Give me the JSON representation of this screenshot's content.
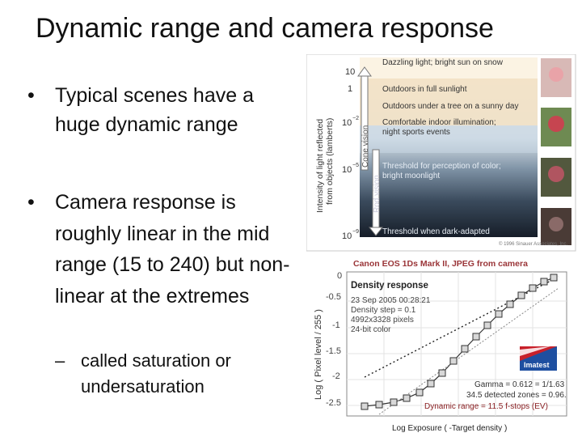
{
  "slide": {
    "title": "Dynamic range and camera response",
    "bullet1": "Typical scenes have a huge dynamic range",
    "bullet2": "Camera response is roughly linear in the mid range (15 to 240) but non-linear at the extremes",
    "subbullet": "called saturation or undersaturation",
    "bullet_symbol": "•",
    "dash_symbol": "–"
  },
  "figure1": {
    "y_axis_label_line1": "Intensity of light reflected",
    "y_axis_label_line2": "from objects (lamberts)",
    "ticks": [
      "10",
      "1",
      "10",
      "10",
      "10"
    ],
    "tick_exponents": [
      "",
      "",
      "−2",
      "−5",
      "−9"
    ],
    "cone_label": "Cone vision",
    "rod_label": "Rod vision",
    "levels": [
      "Dazzling light; bright sun on snow",
      "Outdoors in full sunlight",
      "Outdoors under a tree on a sunny day",
      "Comfortable indoor illumination;",
      "night sports events",
      "Threshold for perception of color;",
      "bright moonlight",
      "Threshold when dark-adapted"
    ],
    "copyright": "© 1996 Sinauer Associates, Inc."
  },
  "figure2": {
    "header": "Canon EOS 1Ds Mark II, JPEG from camera",
    "y_axis_label": "Log ( Pixel level / 255 )",
    "x_axis_label": "Log Exposure ( -Target density )",
    "y_ticks": [
      "0",
      "-0.5",
      "-1",
      "-1.5",
      "-2",
      "-2.5"
    ],
    "panel_title": "Density response",
    "info": [
      "23 Sep 2005 00:28:21",
      "Density step = 0.1",
      "4992x3328 pixels",
      "24-bit color"
    ],
    "logo_text": "Imatest",
    "gamma": "Gamma = 0.612 = 1/1.63",
    "zones": "34.5 detected zones = 0.96.",
    "dynamic_range": "Dynamic range = 11.5 f-stops (EV)"
  }
}
